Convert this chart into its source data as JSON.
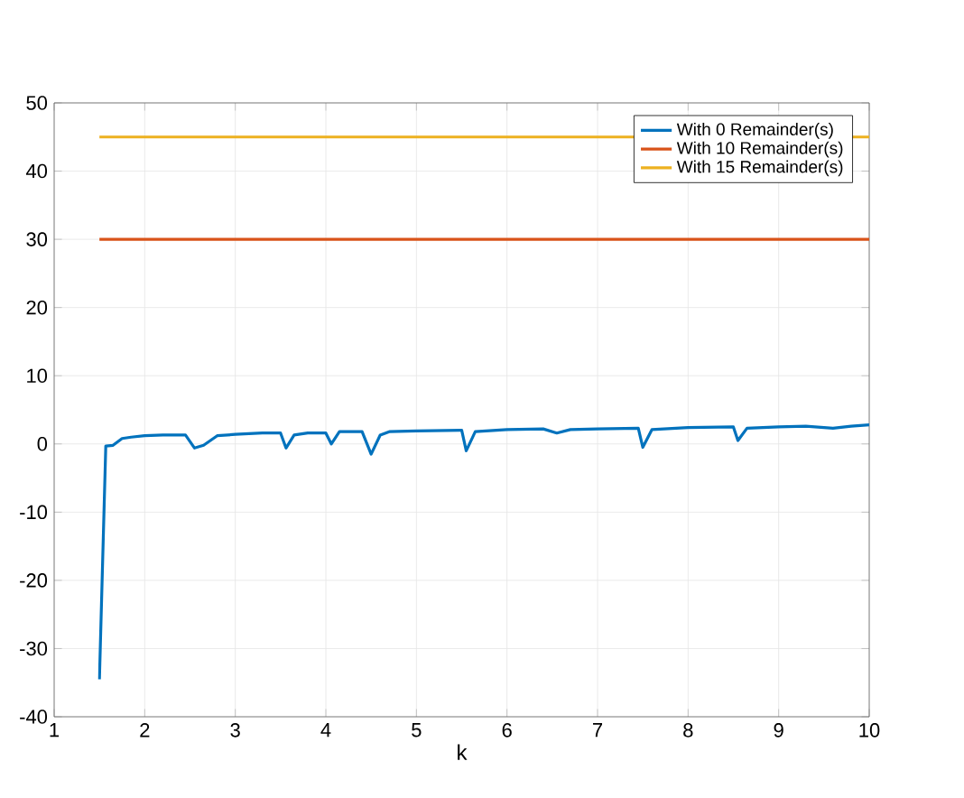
{
  "chart_data": {
    "type": "line",
    "xlabel": "k",
    "xlim": [
      1,
      10
    ],
    "ylim": [
      -40,
      50
    ],
    "xticks": [
      1,
      2,
      3,
      4,
      5,
      6,
      7,
      8,
      9,
      10
    ],
    "yticks": [
      -40,
      -30,
      -20,
      -10,
      0,
      10,
      20,
      30,
      40,
      50
    ],
    "grid": true,
    "legend": "top right",
    "line_style": "solid",
    "marker": "none",
    "series": [
      {
        "name": "With 0 Remainder(s)",
        "color": "#0072bd",
        "x": [
          1.5,
          1.57,
          1.65,
          1.75,
          1.85,
          2.0,
          2.2,
          2.45,
          2.55,
          2.65,
          2.8,
          3.0,
          3.3,
          3.5,
          3.56,
          3.65,
          3.8,
          4.0,
          4.06,
          4.15,
          4.4,
          4.5,
          4.6,
          4.7,
          5.0,
          5.5,
          5.55,
          5.65,
          6.0,
          6.4,
          6.55,
          6.7,
          7.0,
          7.45,
          7.5,
          7.6,
          8.0,
          8.5,
          8.55,
          8.65,
          9.0,
          9.3,
          9.5,
          9.6,
          9.8,
          10.0
        ],
        "values": [
          -34.5,
          -0.3,
          -0.2,
          0.8,
          1.0,
          1.2,
          1.3,
          1.3,
          -0.6,
          -0.2,
          1.2,
          1.4,
          1.6,
          1.6,
          -0.6,
          1.3,
          1.6,
          1.6,
          0.0,
          1.8,
          1.8,
          -1.5,
          1.3,
          1.8,
          1.9,
          2.0,
          -1.0,
          1.8,
          2.1,
          2.2,
          1.6,
          2.1,
          2.2,
          2.3,
          -0.5,
          2.1,
          2.4,
          2.5,
          0.5,
          2.3,
          2.5,
          2.6,
          2.4,
          2.3,
          2.6,
          2.8
        ]
      },
      {
        "name": "With 10 Remainder(s)",
        "color": "#d95319",
        "x": [
          1.5,
          10
        ],
        "values": [
          30,
          30
        ]
      },
      {
        "name": "With 15 Remainder(s)",
        "color": "#edb120",
        "x": [
          1.5,
          10
        ],
        "values": [
          45,
          45
        ]
      }
    ]
  }
}
